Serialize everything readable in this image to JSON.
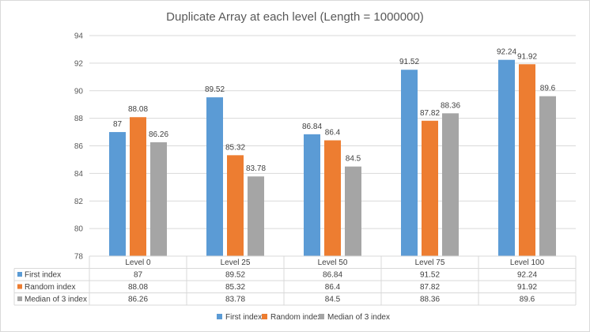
{
  "chart_data": {
    "type": "bar",
    "title": "Duplicate Array at each level (Length = 1000000)",
    "categories": [
      "Level 0",
      "Level 25",
      "Level 50",
      "Level 75",
      "Level 100"
    ],
    "series": [
      {
        "name": "First index",
        "values": [
          87,
          89.52,
          86.84,
          91.52,
          92.24
        ],
        "labels": [
          "87",
          "89.52",
          "86.84",
          "91.52",
          "92.24"
        ],
        "color": "#5B9BD5"
      },
      {
        "name": "Random index",
        "values": [
          88.08,
          85.32,
          86.4,
          87.82,
          91.92
        ],
        "labels": [
          "88.08",
          "85.32",
          "86.4",
          "87.82",
          "91.92"
        ],
        "color": "#ED7D31"
      },
      {
        "name": "Median of 3 index",
        "values": [
          86.26,
          83.78,
          84.5,
          88.36,
          89.6
        ],
        "labels": [
          "86.26",
          "83.78",
          "84.5",
          "88.36",
          "89.6"
        ],
        "color": "#A5A5A5"
      }
    ],
    "ylim": [
      78,
      94
    ],
    "yticks": [
      "78",
      "80",
      "82",
      "84",
      "86",
      "88",
      "90",
      "92",
      "94"
    ],
    "grid": true,
    "legend": "bottom",
    "data_table": true
  }
}
